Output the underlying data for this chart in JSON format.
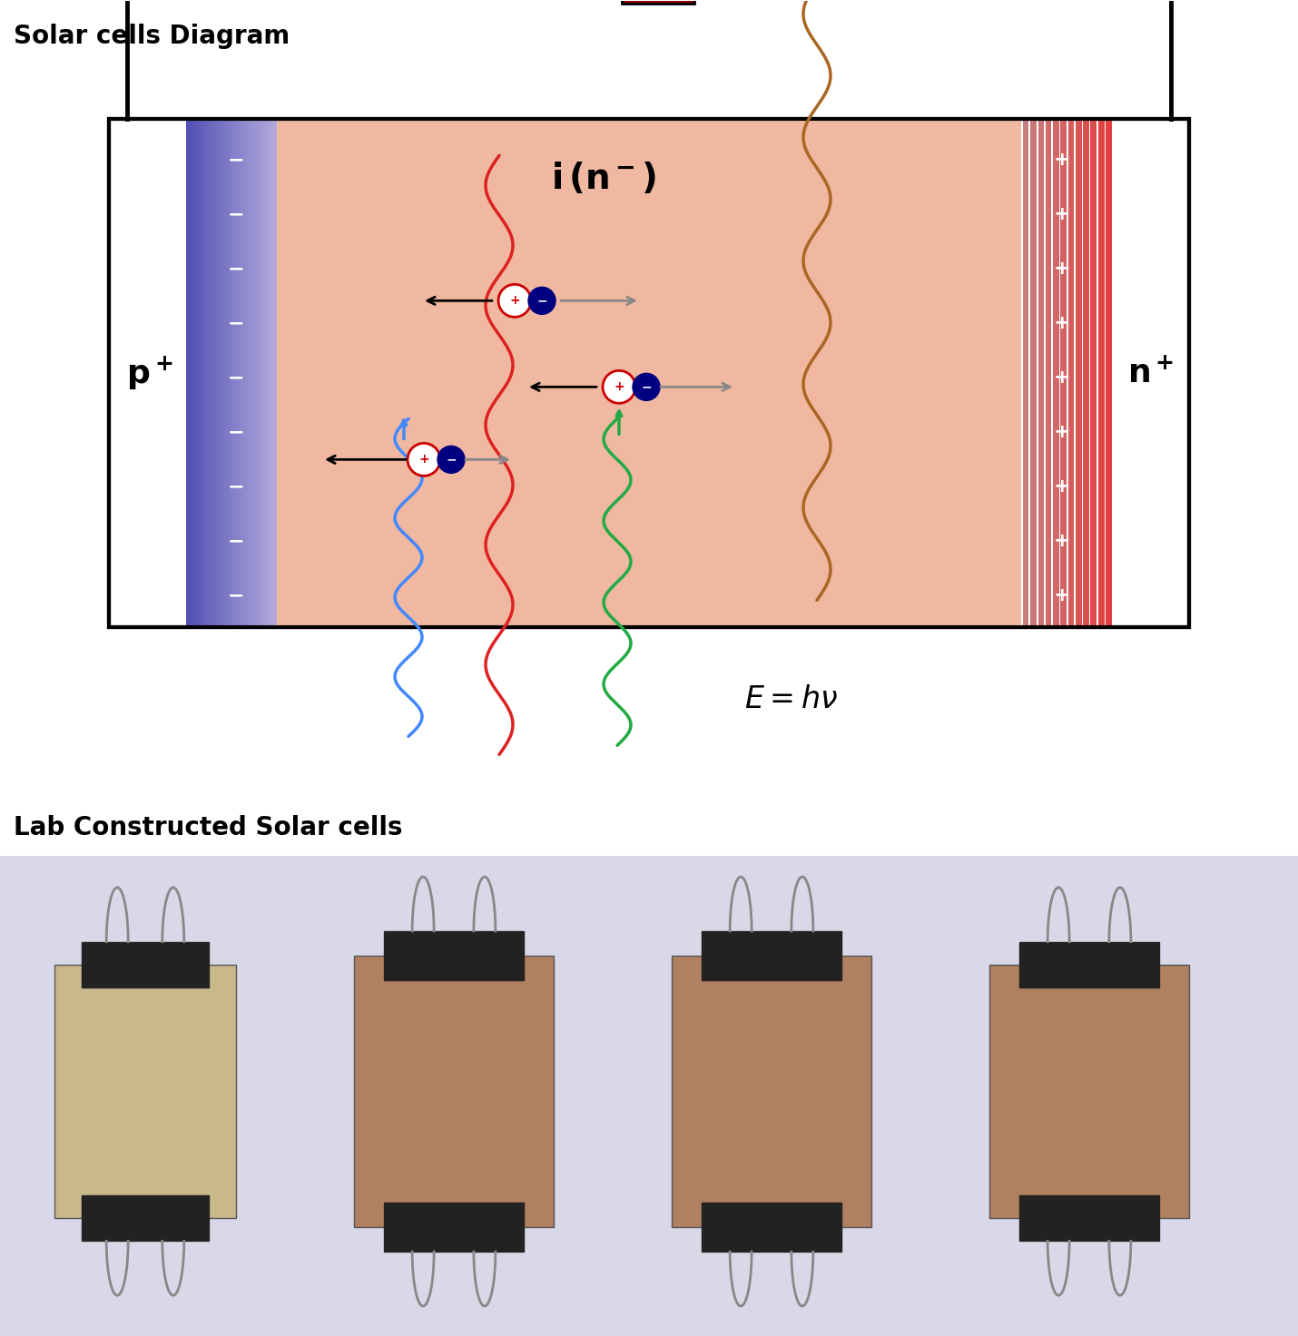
{
  "title_top": "Solar cells Diagram",
  "title_bottom": "Lab Constructed Solar cells",
  "bg_color": "#ffffff",
  "diagram_bg": "#f5c8b0",
  "p_label": "p⁺",
  "n_label": "n⁺",
  "i_label": "i (n⁻)",
  "energy_label": "$E=h\\nu$",
  "p_color_start": "#6060c0",
  "p_color_end": "#c0c0e8",
  "n_color_start": "#e08080",
  "n_color_end": "#f0b0b0",
  "resistor_color": "#8b0000",
  "wire_color": "#000000",
  "bulb_color": "#f0f000",
  "wave_blue": "#4488ff",
  "wave_red": "#dd2222",
  "wave_green": "#22aa44",
  "wave_brown": "#aa6622",
  "arrow_black": "#000000",
  "arrow_gray": "#888888",
  "plus_color": "#cc0000",
  "minus_color": "#000080"
}
